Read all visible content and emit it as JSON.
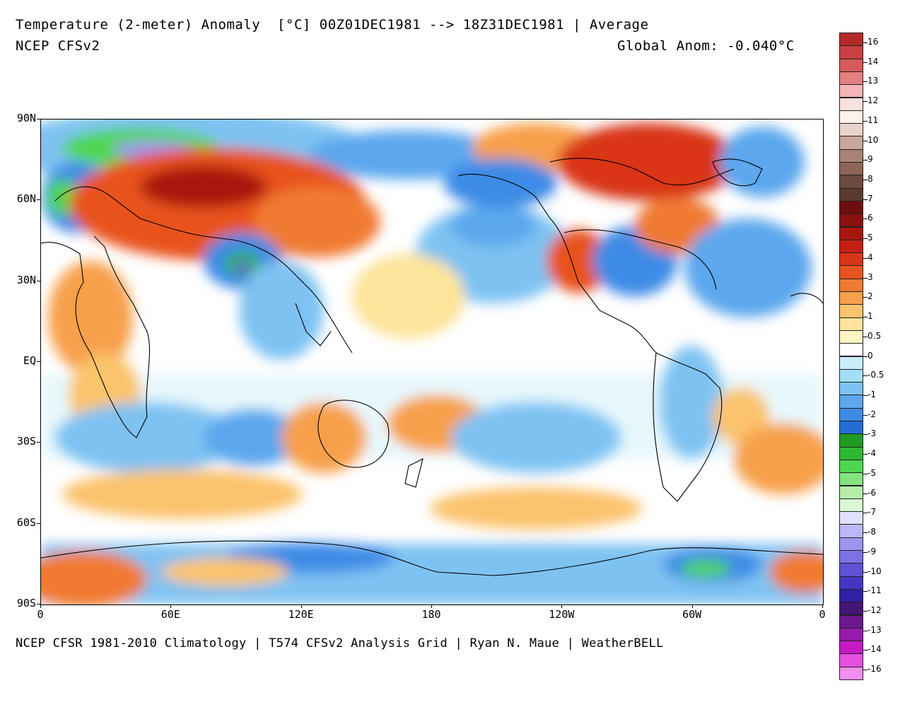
{
  "header": {
    "title": "Temperature (2-meter) Anomaly  [°C] 00Z01DEC1981 --> 18Z31DEC1981 | Average",
    "subtitle": "NCEP CFSv2",
    "global_anomaly": "Global Anom: -0.040°C"
  },
  "footer": "NCEP CFSR 1981-2010 Climatology | T574 CFSv2 Analysis Grid | Ryan N. Maue | WeatherBELL",
  "axes": {
    "y_ticks": [
      "90N",
      "60N",
      "30N",
      "EQ",
      "30S",
      "60S",
      "90S"
    ],
    "x_ticks": [
      "0",
      "60E",
      "120E",
      "180",
      "120W",
      "60W",
      "0"
    ]
  },
  "colorbar": {
    "colors": [
      "#b22a2a",
      "#c84040",
      "#d85a5a",
      "#e57f7f",
      "#f3b6b6",
      "#fbe0e0",
      "#fdf1ea",
      "#ead3cb",
      "#c9a79b",
      "#a98474",
      "#8d6556",
      "#6e4b3f",
      "#5a3a30",
      "#6e0e0e",
      "#8b1010",
      "#a81610",
      "#c42012",
      "#d93518",
      "#e8531f",
      "#f07a33",
      "#f7a04c",
      "#fbc36c",
      "#fde49a",
      "#fdf6c2",
      "#ffffff",
      "#c9eef8",
      "#a3ddf6",
      "#7ec2f2",
      "#5ca7ee",
      "#3d8be6",
      "#226dd6",
      "#1f9a24",
      "#2cb833",
      "#4fd650",
      "#84e37e",
      "#b5eeab",
      "#dcf7d4",
      "#e1e1fb",
      "#bcb8f5",
      "#9d95ef",
      "#7d72e5",
      "#5f52d5",
      "#4436c1",
      "#3020a3",
      "#431575",
      "#6a1a8e",
      "#961aab",
      "#c51ac6",
      "#e64fe0",
      "#f08ff0"
    ],
    "labels": [
      {
        "text": "16",
        "index": 1
      },
      {
        "text": "14",
        "index": 3
      },
      {
        "text": "13",
        "index": 5
      },
      {
        "text": "12",
        "index": 7
      },
      {
        "text": "11",
        "index": 9
      },
      {
        "text": "10",
        "index": 11
      },
      {
        "text": "9",
        "index": 13
      },
      {
        "text": "8",
        "index": 15
      },
      {
        "text": "7",
        "index": 17
      },
      {
        "text": "6",
        "index": 19
      },
      {
        "text": "5",
        "index": 21
      },
      {
        "text": "4",
        "index": 23
      },
      {
        "text": "3",
        "index": 25
      },
      {
        "text": "2",
        "index": 27
      },
      {
        "text": "1",
        "index": 29
      },
      {
        "text": "0.5",
        "index": 31
      },
      {
        "text": "0",
        "index": 33
      },
      {
        "text": "-0.5",
        "index": 35
      },
      {
        "text": "-1",
        "index": 37
      },
      {
        "text": "-2",
        "index": 39
      },
      {
        "text": "-3",
        "index": 41
      },
      {
        "text": "-4",
        "index": 43
      },
      {
        "text": "-5",
        "index": 45
      },
      {
        "text": "-6",
        "index": 47
      },
      {
        "text": "-7",
        "index": 49
      },
      {
        "text": "-8",
        "index": 51
      },
      {
        "text": "-9",
        "index": 53
      },
      {
        "text": "-10",
        "index": 55
      },
      {
        "text": "-11",
        "index": 57
      },
      {
        "text": "-12",
        "index": 59
      },
      {
        "text": "-13",
        "index": 61
      },
      {
        "text": "-14",
        "index": 63
      },
      {
        "text": "-16",
        "index": 65
      }
    ]
  }
}
